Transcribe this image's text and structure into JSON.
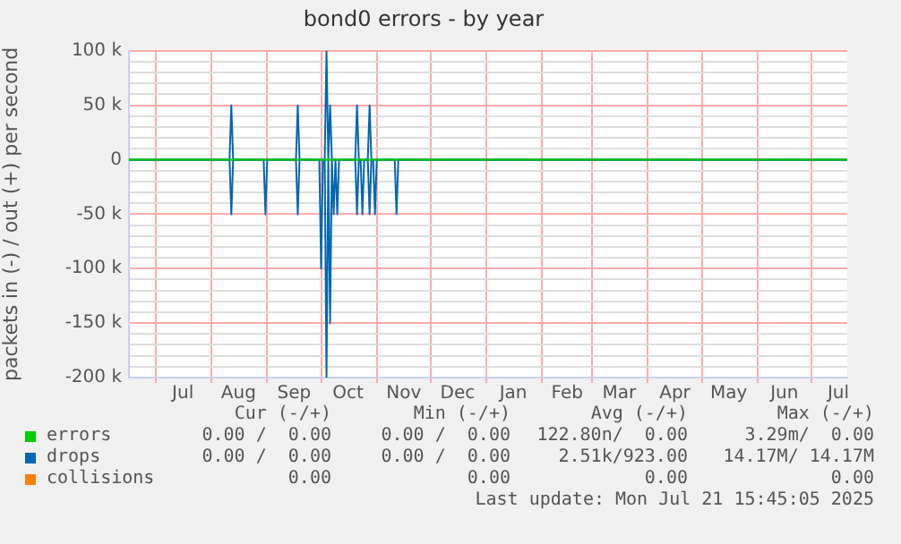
{
  "chart_data": {
    "type": "line",
    "title": "bond0 errors - by year",
    "ylabel": "packets in (-) / out (+) per second",
    "xlim": [
      "2024-06-16",
      "2025-07-21"
    ],
    "xticks": [
      {
        "value": "2024-07-01",
        "label": null
      },
      {
        "value": "2024-07-16",
        "label": "Jul"
      },
      {
        "value": "2024-08-01",
        "label": null
      },
      {
        "value": "2024-08-16",
        "label": "Aug"
      },
      {
        "value": "2024-09-01",
        "label": null
      },
      {
        "value": "2024-09-16",
        "label": "Sep"
      },
      {
        "value": "2024-10-01",
        "label": null
      },
      {
        "value": "2024-10-16",
        "label": "Oct"
      },
      {
        "value": "2024-11-01",
        "label": null
      },
      {
        "value": "2024-11-16",
        "label": "Nov"
      },
      {
        "value": "2024-12-01",
        "label": null
      },
      {
        "value": "2024-12-16",
        "label": "Dec"
      },
      {
        "value": "2025-01-01",
        "label": null
      },
      {
        "value": "2025-01-16",
        "label": "Jan"
      },
      {
        "value": "2025-02-01",
        "label": null
      },
      {
        "value": "2025-02-15",
        "label": "Feb"
      },
      {
        "value": "2025-03-01",
        "label": null
      },
      {
        "value": "2025-03-16",
        "label": "Mar"
      },
      {
        "value": "2025-04-01",
        "label": null
      },
      {
        "value": "2025-04-16",
        "label": "Apr"
      },
      {
        "value": "2025-05-01",
        "label": null
      },
      {
        "value": "2025-05-16",
        "label": "May"
      },
      {
        "value": "2025-06-01",
        "label": null
      },
      {
        "value": "2025-06-16",
        "label": "Jun"
      },
      {
        "value": "2025-07-01",
        "label": null
      },
      {
        "value": "2025-07-16",
        "label": "Jul"
      }
    ],
    "ylim": [
      -200000,
      100000
    ],
    "yticks": [
      {
        "value": 100000,
        "label": "100 k"
      },
      {
        "value": 90000,
        "label": null
      },
      {
        "value": 80000,
        "label": null
      },
      {
        "value": 70000,
        "label": null
      },
      {
        "value": 60000,
        "label": null
      },
      {
        "value": 50000,
        "label": "50 k"
      },
      {
        "value": 40000,
        "label": null
      },
      {
        "value": 30000,
        "label": null
      },
      {
        "value": 20000,
        "label": null
      },
      {
        "value": 10000,
        "label": null
      },
      0,
      {
        "value": -10000,
        "label": null
      },
      {
        "value": -20000,
        "label": null
      },
      {
        "value": -30000,
        "label": null
      },
      {
        "value": -40000,
        "label": null
      },
      {
        "value": -50000,
        "label": "-50 k"
      },
      {
        "value": -60000,
        "label": null
      },
      {
        "value": -70000,
        "label": null
      },
      {
        "value": -80000,
        "label": null
      },
      {
        "value": -90000,
        "label": null
      },
      {
        "value": -100000,
        "label": "-100 k"
      },
      {
        "value": -110000,
        "label": null
      },
      {
        "value": -120000,
        "label": null
      },
      {
        "value": -130000,
        "label": null
      },
      {
        "value": -140000,
        "label": null
      },
      {
        "value": -150000,
        "label": "-150 k"
      },
      {
        "value": -160000,
        "label": null
      },
      {
        "value": -170000,
        "label": null
      },
      {
        "value": -180000,
        "label": null
      },
      {
        "value": -190000,
        "label": null
      },
      {
        "value": -200000,
        "label": "-200 k"
      }
    ],
    "grid": true,
    "legend": "bottom",
    "series": [
      {
        "name": "collisions",
        "color": "#ff7f00"
      },
      {
        "color": "#0066b3",
        "x": [
          "2024-06-16",
          "2024-08-11",
          "2024-08-12",
          "2024-08-13",
          "2024-08-30",
          "2024-08-31",
          "2024-09-01",
          "2024-09-17",
          "2024-09-18",
          "2024-09-19",
          "2024-09-30",
          "2024-10-01",
          "2024-10-02",
          "2024-10-03",
          "2024-10-04",
          "2024-10-05",
          "2024-10-06",
          "2024-10-07",
          "2024-10-08",
          "2024-10-09",
          "2024-10-10",
          "2024-10-11",
          "2024-10-20",
          "2024-10-21",
          "2024-10-22",
          "2024-10-23",
          "2024-10-24",
          "2024-10-25",
          "2024-10-27",
          "2024-10-28",
          "2024-10-29",
          "2024-10-30",
          "2024-10-31",
          "2024-11-01",
          "2024-11-11",
          "2024-11-12",
          "2024-11-13",
          "2025-07-21"
        ],
        "values": [
          0,
          0,
          -50000,
          0,
          0,
          -50000,
          0,
          0,
          -50000,
          0,
          0,
          -100000,
          0,
          0,
          -200000,
          0,
          -150000,
          0,
          -50000,
          0,
          -50000,
          0,
          0,
          -50000,
          0,
          0,
          -50000,
          0,
          0,
          -50000,
          0,
          0,
          -50000,
          0,
          0,
          -50000,
          0,
          0
        ]
      },
      {
        "name": "drops",
        "color": "#0066b3",
        "x": [
          "2024-06-16",
          "2024-08-11",
          "2024-08-12",
          "2024-08-13",
          "2024-09-17",
          "2024-09-18",
          "2024-09-19",
          "2024-10-03",
          "2024-10-04",
          "2024-10-05",
          "2024-10-06",
          "2024-10-07",
          "2024-10-20",
          "2024-10-21",
          "2024-10-22",
          "2024-10-27",
          "2024-10-28",
          "2024-10-29",
          "2025-07-21"
        ],
        "values": [
          0,
          0,
          50000,
          0,
          0,
          50000,
          0,
          0,
          100000,
          0,
          50000,
          0,
          0,
          50000,
          0,
          0,
          50000,
          0,
          0
        ]
      },
      {
        "name": "errors",
        "color": "#00cc00",
        "x": [
          "2024-06-16",
          "2025-07-21"
        ],
        "values": [
          0,
          0
        ]
      }
    ],
    "annotations": [
      "Cur (-/+)",
      "Min (-/+)",
      "Avg (-/+)",
      "Max (-/+)",
      "0.00 /  0.00",
      "0.00 /  0.00",
      "122.80n/  0.00",
      "3.29m/  0.00",
      "0.00 /  0.00",
      "0.00 /  0.00",
      "2.51k/923.00",
      "14.17M/ 14.17M",
      "0.00",
      "0.00",
      "0.00",
      "0.00",
      "Last update: Mon Jul 21 15:45:05 2025"
    ]
  }
}
